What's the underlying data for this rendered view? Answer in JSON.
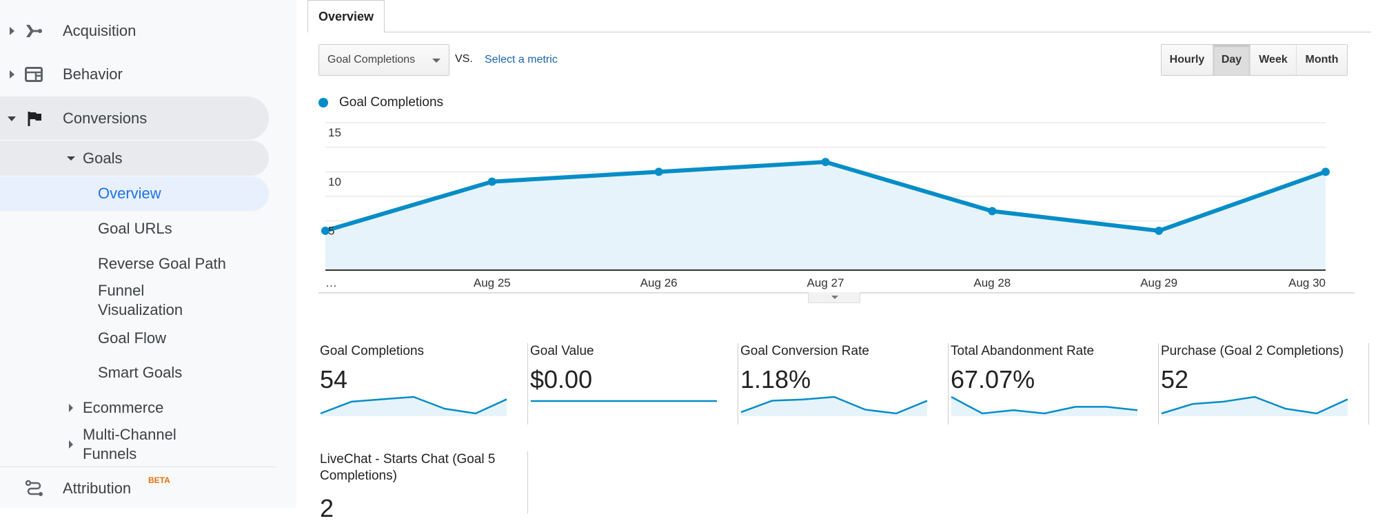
{
  "sidebar": {
    "items": [
      {
        "label": "Acquisition",
        "icon": "acquisition-icon"
      },
      {
        "label": "Behavior",
        "icon": "behavior-icon"
      },
      {
        "label": "Conversions",
        "icon": "flag-icon"
      }
    ],
    "goals": "Goals",
    "goal_items": [
      "Overview",
      "Goal URLs",
      "Reverse Goal Path",
      "Funnel Visualization",
      "Goal Flow",
      "Smart Goals"
    ],
    "ecommerce": "Ecommerce",
    "multichannel": "Multi-Channel Funnels",
    "attribution": "Attribution",
    "beta": "BETA"
  },
  "tab": "Overview",
  "controls": {
    "metric": "Goal Completions",
    "vs": "VS.",
    "select_metric": "Select a metric",
    "periods": [
      "Hourly",
      "Day",
      "Week",
      "Month"
    ],
    "active_period": "Day"
  },
  "chart_data": {
    "type": "area",
    "series": [
      {
        "name": "Goal Completions",
        "values": [
          4,
          9,
          10,
          11,
          6,
          4,
          10
        ],
        "color": "#058dc7"
      }
    ],
    "categories": [
      "…",
      "Aug 25",
      "Aug 26",
      "Aug 27",
      "Aug 28",
      "Aug 29",
      "Aug 30"
    ],
    "yticks": [
      5,
      10,
      15
    ],
    "ylim": [
      0,
      15
    ],
    "legend": "top-left"
  },
  "metrics": [
    {
      "label": "Goal Completions",
      "value": "54",
      "spark": [
        4,
        9,
        10,
        11,
        6,
        4,
        10
      ]
    },
    {
      "label": "Goal Value",
      "value": "$0.00",
      "spark": [
        0,
        0,
        0,
        0,
        0,
        0,
        0
      ]
    },
    {
      "label": "Goal Conversion Rate",
      "value": "1.18%",
      "spark": [
        0.9,
        1.35,
        1.4,
        1.5,
        1.0,
        0.85,
        1.35
      ]
    },
    {
      "label": "Total Abandonment Rate",
      "value": "67.07%",
      "spark": [
        70,
        65,
        66,
        65,
        67,
        67,
        66
      ]
    },
    {
      "label": "Purchase (Goal 2 Completions)",
      "value": "52",
      "spark": [
        4,
        8,
        9,
        11,
        6,
        4,
        10
      ]
    },
    {
      "label": "LiveChat - Starts Chat (Goal 5 Completions)",
      "value": "2",
      "spark": []
    }
  ]
}
